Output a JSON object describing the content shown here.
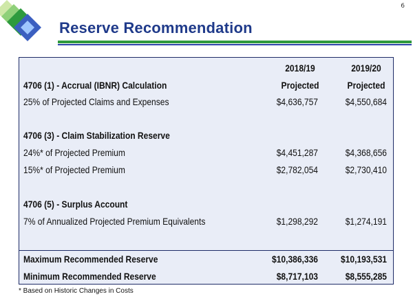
{
  "page_number": "6",
  "title": "Reserve Recommendation",
  "columns": [
    {
      "year": "2018/19",
      "sub": "Projected"
    },
    {
      "year": "2019/20",
      "sub": "Projected"
    }
  ],
  "sections": [
    {
      "heading": "4706 (1) - Accrual (IBNR) Calculation",
      "rows": [
        {
          "label": "25% of Projected Claims and Expenses",
          "v1": "$4,636,757",
          "v2": "$4,550,684"
        }
      ]
    },
    {
      "heading": "4706 (3) - Claim Stabilization Reserve",
      "rows": [
        {
          "label": "24%* of Projected Premium",
          "v1": "$4,451,287",
          "v2": "$4,368,656"
        },
        {
          "label": "15%* of Projected Premium",
          "v1": "$2,782,054",
          "v2": "$2,730,410"
        }
      ]
    },
    {
      "heading": "4706 (5) - Surplus Account",
      "rows": [
        {
          "label": "7% of Annualized Projected Premium Equivalents",
          "v1": "$1,298,292",
          "v2": "$1,274,191"
        }
      ]
    }
  ],
  "totals": [
    {
      "label": "Maximum Recommended Reserve",
      "v1": "$10,386,336",
      "v2": "$10,193,531"
    },
    {
      "label": "Minimum Recommended Reserve",
      "v1": "$8,717,103",
      "v2": "$8,555,285"
    }
  ],
  "footnote": "* Based on Historic Changes in Costs",
  "colors": {
    "title": "#1f3a8a",
    "rule_green": "#2e9a3e",
    "rule_blue": "#2c44a8",
    "panel": "#e9edf7",
    "border": "#1c2a66"
  }
}
